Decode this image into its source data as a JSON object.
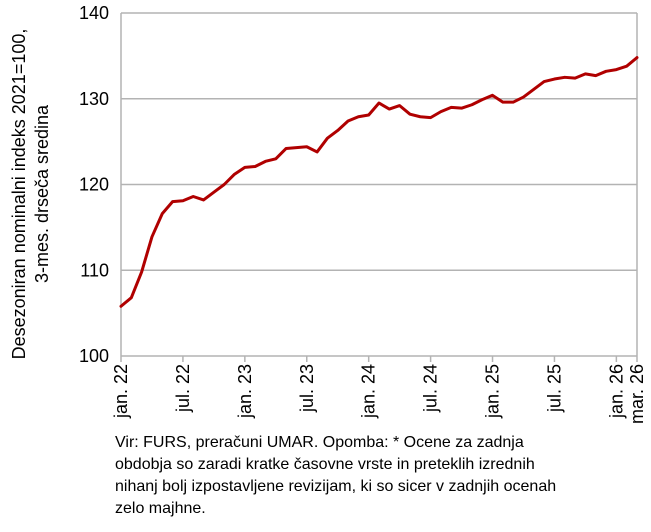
{
  "chart_data": {
    "type": "line",
    "title": "",
    "ylabel_lines": [
      "Desezoniran nominalni indeks 2021=100,",
      "3-mes. drseča sredina"
    ],
    "xlabel": "",
    "ylim": [
      100,
      140
    ],
    "yticks": [
      100,
      110,
      120,
      130,
      140
    ],
    "grid": true,
    "legend": "none",
    "line_color": "#b00000",
    "x_tick_labels": [
      {
        "label": "jan. 22",
        "index": 0
      },
      {
        "label": "jul. 22",
        "index": 6
      },
      {
        "label": "jan. 23",
        "index": 12
      },
      {
        "label": "jul. 23",
        "index": 18
      },
      {
        "label": "jan. 24",
        "index": 24
      },
      {
        "label": "jul. 24",
        "index": 30
      },
      {
        "label": "jan. 25",
        "index": 36
      },
      {
        "label": "jul. 25",
        "index": 42
      },
      {
        "label": "jan. 26",
        "index": 48
      },
      {
        "label": "mar. 26",
        "index": 50
      }
    ],
    "series": [
      {
        "values": [
          105.8,
          106.8,
          109.8,
          113.9,
          116.6,
          118.0,
          118.1,
          118.6,
          118.2,
          119.1,
          120.0,
          121.2,
          122.0,
          122.1,
          122.7,
          123.0,
          124.2,
          124.3,
          124.4,
          123.8,
          125.4,
          126.3,
          127.4,
          127.9,
          128.1,
          129.5,
          128.8,
          129.2,
          128.2,
          127.9,
          127.8,
          128.5,
          129.0,
          128.9,
          129.3,
          129.9,
          130.4,
          129.6,
          129.6,
          130.2,
          131.1,
          132.0,
          132.3,
          132.5,
          132.4,
          132.9,
          132.7,
          133.2,
          133.4,
          133.8,
          134.8
        ]
      }
    ]
  },
  "footnote": [
    "Vir: FURS, preračuni UMAR. Opomba: * Ocene za zadnja",
    "obdobja so zaradi kratke časovne vrste in preteklih izrednih",
    "nihanj bolj izpostavljene revizijam, ki so sicer v zadnjih ocenah",
    "zelo majhne."
  ]
}
